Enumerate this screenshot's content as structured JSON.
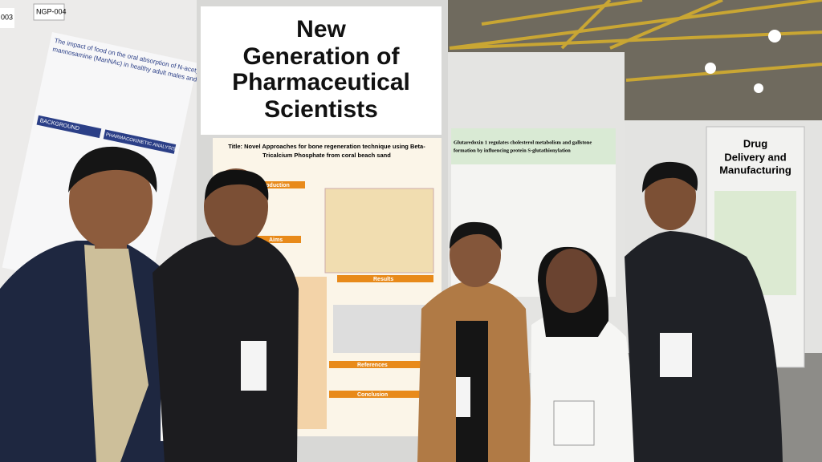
{
  "signs": {
    "main": {
      "lines": [
        "New",
        "Generation of",
        "Pharmaceutical",
        "Scientists"
      ]
    },
    "side": {
      "lines": [
        "Drug",
        "Delivery and",
        "Manufacturing"
      ]
    }
  },
  "posters": {
    "left": {
      "code": "NGP-004",
      "title_lines": [
        "The impact of food on the oral absorption of N-acetyl-D-",
        "mannosamine (ManNAc) in healthy adult males and females"
      ],
      "sections": [
        "BACKGROUND",
        "PHARMACOKINETIC ANALYSIS"
      ]
    },
    "edge": {
      "code": "003"
    },
    "center": {
      "title_lines": [
        "Title: Novel Approaches for bone regeneration technique using Beta-",
        "Tricalcium Phosphate from coral beach sand"
      ],
      "sections": [
        "Introduction",
        "Aims",
        "Results",
        "References",
        "Conclusion"
      ]
    },
    "right": {
      "title_lines": [
        "Glutaredoxin 1 regulates cholesterol metabolism and gallstone",
        "formation by influencing protein S-glutathionylation"
      ]
    }
  }
}
